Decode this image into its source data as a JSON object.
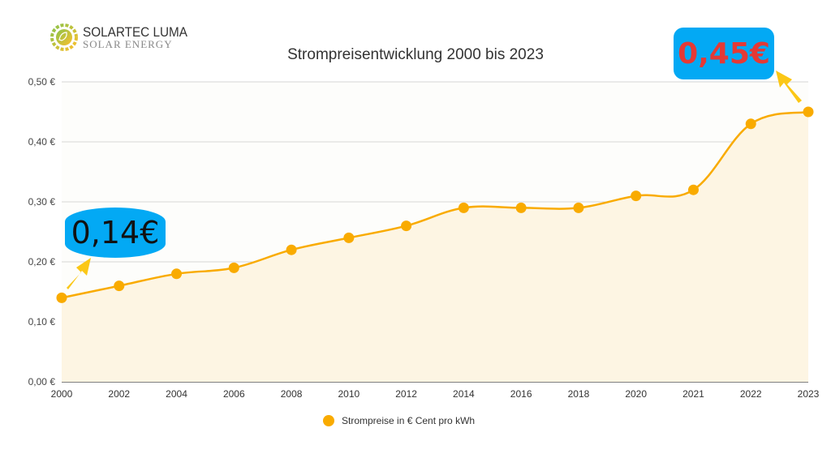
{
  "logo": {
    "name": "SOLARTEC LUMA",
    "tagline": "SOLAR ENERGY"
  },
  "callouts": {
    "start": "0,14€",
    "end": "0,45€"
  },
  "colors": {
    "line": "#f9ab00",
    "fill": "#fdf5e3",
    "callout": "#03a9f4",
    "end_text": "#e53935"
  },
  "chart_data": {
    "type": "area",
    "title": "Strompreisentwicklung 2000 bis 2023",
    "xlabel": "",
    "ylabel": "",
    "categories": [
      "2000",
      "2002",
      "2004",
      "2006",
      "2008",
      "2010",
      "2012",
      "2014",
      "2016",
      "2018",
      "2020",
      "2021",
      "2022",
      "2023"
    ],
    "series": [
      {
        "name": "Strompreise in € Cent pro kWh",
        "values": [
          0.14,
          0.16,
          0.18,
          0.19,
          0.22,
          0.24,
          0.26,
          0.29,
          0.29,
          0.29,
          0.31,
          0.32,
          0.43,
          0.45
        ]
      }
    ],
    "yticks": [
      "0,00 €",
      "0,10 €",
      "0,20 €",
      "0,30 €",
      "0,40 €",
      "0,50 €"
    ],
    "ylim": [
      0,
      0.5
    ],
    "grid": true,
    "legend": "bottom"
  }
}
